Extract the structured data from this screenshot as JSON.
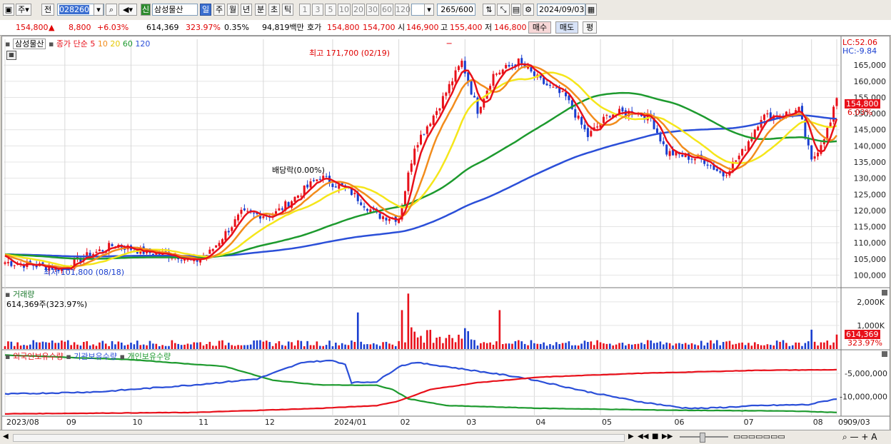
{
  "toolbar": {
    "type_label": "주",
    "prev_label": "전",
    "code": "028260",
    "name_tag": "신",
    "name": "삼성물산",
    "periods": [
      "일",
      "주",
      "월",
      "년",
      "분",
      "초",
      "틱"
    ],
    "active_period": "일",
    "intervals": [
      "1",
      "3",
      "5",
      "10",
      "20",
      "30",
      "60",
      "120"
    ],
    "count": "265",
    "count_total": "/600",
    "date": "2024/09/03"
  },
  "quote": {
    "price": "154,800",
    "up_arrow": "▲",
    "change": "8,800",
    "change_pct": "+6.03%",
    "volume": "614,369",
    "volume_ratio": "323.97%",
    "turnover": "0.35%",
    "amount": "94,819백만",
    "ask_label": "호가",
    "ask": "154,800",
    "bid": "154,700",
    "open_label": "시",
    "open": "146,900",
    "high_label": "고",
    "high": "155,400",
    "low_label": "저",
    "low": "146,800",
    "buy_label": "매수",
    "sell_label": "매도",
    "eval_label": "평"
  },
  "price_panel": {
    "title": "삼성물산",
    "ma_label": "종가 단순",
    "ma_periods": [
      "5",
      "10",
      "20",
      "60",
      "120"
    ],
    "lc": "LC:52.06",
    "hc": "HC:-9.84",
    "high_note": "최고 171,700 (02/19)",
    "low_note": "최저 101,800 (08/18)",
    "dividend_note": "배당락(0.00%)",
    "cur_price": "154,800",
    "cur_pct": "6.03%",
    "y_ticks": [
      "165,000",
      "160,000",
      "155,000",
      "150,000",
      "145,000",
      "140,000",
      "135,000",
      "130,000",
      "125,000",
      "120,000",
      "115,000",
      "110,000",
      "105,000",
      "100,000"
    ]
  },
  "volume_panel": {
    "title": "거래량",
    "value": "614,369주(323.97%)",
    "y_ticks": [
      "2,000K",
      "1,000K"
    ],
    "cur_value": "614,369",
    "cur_pct": "323.97%"
  },
  "holdings_panel": {
    "series_labels": [
      "외국인보유수량",
      "기관보유수량",
      "개인보유수량"
    ],
    "y_ticks": [
      "-5,000,000",
      "-10,000,000"
    ]
  },
  "x_axis": {
    "labels": [
      "2023/08",
      "09",
      "10",
      "11",
      "12",
      "2024/01",
      "02",
      "03",
      "04",
      "05",
      "06",
      "07",
      "08",
      "09"
    ],
    "right_label": "09/03"
  },
  "chart_data": {
    "type": "line",
    "price_range": [
      97000,
      173000
    ],
    "volume_range": [
      0,
      2600
    ],
    "holdings_range": [
      -14000000,
      0
    ],
    "months": [
      "2023/08",
      "09",
      "10",
      "11",
      "12",
      "2024/01",
      "02",
      "03",
      "04",
      "05",
      "06",
      "07",
      "08",
      "09"
    ],
    "colors": {
      "ma5": "#e8101a",
      "ma10": "#f28c1c",
      "ma20": "#f5e61a",
      "ma60": "#1d9a2e",
      "ma120": "#2b4fd8",
      "up": "#e8101a",
      "down": "#1a3fd0"
    }
  }
}
